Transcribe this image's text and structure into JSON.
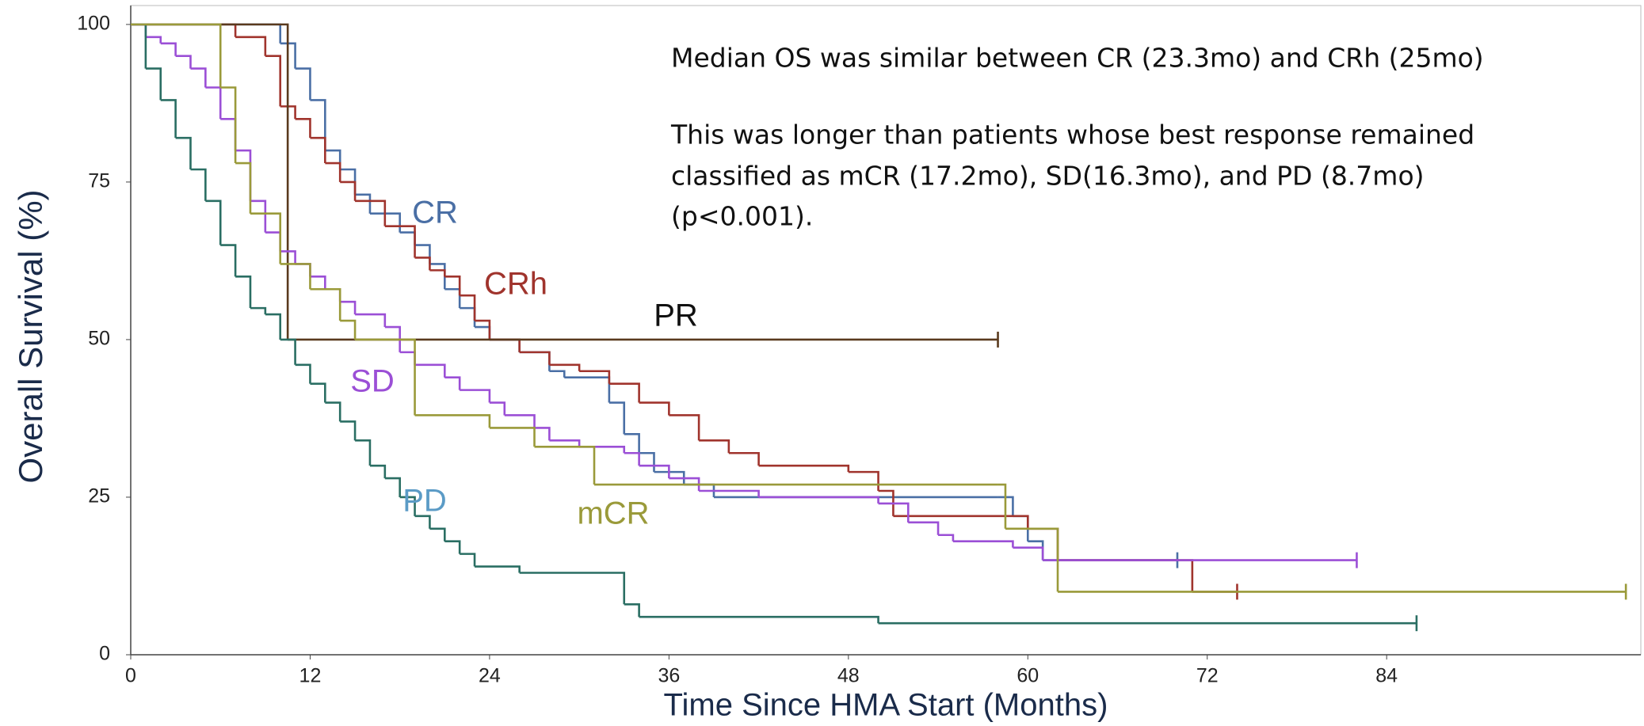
{
  "chart_data": {
    "type": "line",
    "step": true,
    "x_label": "Time Since HMA Start (Months)",
    "y_label": "Overall Survival (%)",
    "annotations": [
      "Median OS was similar between CR (23.3mo) and CRh (25mo)",
      "This was longer than patients whose best response remained",
      "classified as mCR (17.2mo), SD(16.3mo), and PD (8.7mo)",
      "(p<0.001)."
    ],
    "xlim": [
      0,
      101
    ],
    "ylim": [
      0,
      103
    ],
    "xticks": [
      0,
      12,
      24,
      36,
      48,
      60,
      72,
      84
    ],
    "yticks": [
      0,
      25,
      50,
      75,
      100
    ],
    "series": [
      {
        "name": "CR",
        "color": "#4a6fa5",
        "x": [
          0,
          10,
          11,
          12,
          13,
          14,
          15,
          16,
          18,
          19,
          20,
          21,
          22,
          23,
          24,
          26,
          28,
          29,
          32,
          33,
          34,
          35,
          37,
          39,
          58,
          59,
          60,
          61,
          70
        ],
        "values": [
          100,
          97,
          93,
          88,
          80,
          77,
          73,
          70,
          67,
          65,
          62,
          58,
          55,
          52,
          50,
          48,
          45,
          44,
          40,
          35,
          32,
          29,
          27,
          25,
          25,
          22,
          18,
          15,
          15
        ]
      },
      {
        "name": "CRh",
        "color": "#a0342d",
        "x": [
          0,
          7,
          9,
          10,
          11,
          12,
          13,
          14,
          15,
          17,
          19,
          20,
          21,
          22,
          23,
          24,
          26,
          28,
          30,
          32,
          34,
          36,
          38,
          40,
          42,
          48,
          50,
          51,
          60,
          62,
          71,
          74
        ],
        "values": [
          100,
          98,
          95,
          87,
          85,
          82,
          78,
          75,
          72,
          68,
          63,
          61,
          60,
          57,
          53,
          50,
          48,
          46,
          45,
          43,
          40,
          38,
          34,
          32,
          30,
          29,
          26,
          22,
          20,
          15,
          10,
          10
        ]
      },
      {
        "name": "PR",
        "color": "#5a3a1e",
        "x": [
          0,
          10.5,
          58
        ],
        "values": [
          100,
          50,
          50
        ]
      },
      {
        "name": "SD",
        "color": "#9b4fd6",
        "x": [
          0,
          1,
          2,
          3,
          4,
          5,
          6,
          7,
          8,
          9,
          10,
          11,
          12,
          13,
          14,
          15,
          17,
          18,
          19,
          21,
          22,
          24,
          25,
          27,
          28,
          30,
          33,
          34,
          36,
          38,
          42,
          50,
          52,
          54,
          55,
          59,
          61,
          82
        ],
        "values": [
          100,
          98,
          97,
          95,
          93,
          90,
          85,
          80,
          72,
          67,
          64,
          62,
          60,
          58,
          56,
          54,
          52,
          48,
          46,
          44,
          42,
          40,
          38,
          36,
          34,
          33,
          32,
          30,
          28,
          26,
          25,
          24,
          21,
          19,
          18,
          17,
          15,
          15
        ]
      },
      {
        "name": "PD",
        "color": "#2a6e63",
        "x": [
          0,
          1,
          2,
          3,
          4,
          5,
          6,
          7,
          8,
          9,
          10,
          11,
          12,
          13,
          14,
          15,
          16,
          17,
          18,
          19,
          20,
          21,
          22,
          23,
          26,
          33,
          34,
          50,
          86
        ],
        "values": [
          100,
          93,
          88,
          82,
          77,
          72,
          65,
          60,
          55,
          54,
          50,
          46,
          43,
          40,
          37,
          34,
          30,
          28,
          25,
          22,
          20,
          18,
          16,
          14,
          13,
          8,
          6,
          5,
          5
        ]
      },
      {
        "name": "mCR",
        "color": "#9a9a3a",
        "x": [
          0,
          6,
          7,
          8,
          10,
          12,
          14,
          15,
          19,
          24,
          27,
          31,
          58,
          58.5,
          62,
          100
        ],
        "values": [
          100,
          90,
          78,
          70,
          62,
          58,
          53,
          50,
          38,
          36,
          33,
          27,
          27,
          20,
          10,
          10
        ]
      }
    ]
  }
}
